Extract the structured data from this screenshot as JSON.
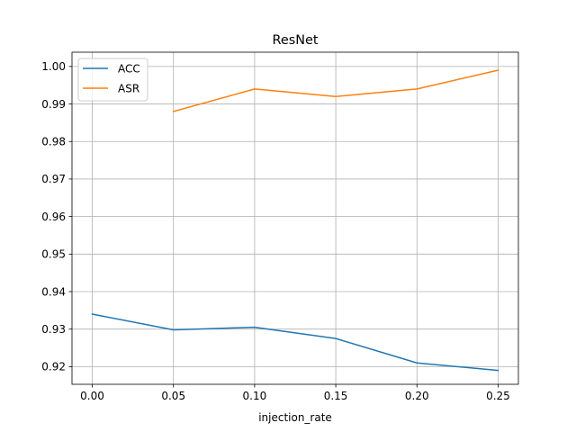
{
  "chart_data": {
    "type": "line",
    "title": "ResNet",
    "xlabel": "injection_rate",
    "ylabel": "",
    "xlim": [
      -0.0125,
      0.2625
    ],
    "ylim": [
      0.9153,
      1.0038
    ],
    "x_ticks": [
      0.0,
      0.05,
      0.1,
      0.15,
      0.2,
      0.25
    ],
    "x_tick_labels": [
      "0.00",
      "0.05",
      "0.10",
      "0.15",
      "0.20",
      "0.25"
    ],
    "y_ticks": [
      0.92,
      0.93,
      0.94,
      0.95,
      0.96,
      0.97,
      0.98,
      0.99,
      1.0
    ],
    "y_tick_labels": [
      "0.92",
      "0.93",
      "0.94",
      "0.95",
      "0.96",
      "0.97",
      "0.98",
      "0.99",
      "1.00"
    ],
    "grid": true,
    "legend_position": "top-left",
    "series": [
      {
        "name": "ACC",
        "color": "#1f77b4",
        "x": [
          0.0,
          0.05,
          0.1,
          0.15,
          0.2,
          0.25
        ],
        "y": [
          0.934,
          0.9298,
          0.9305,
          0.9275,
          0.921,
          0.919
        ]
      },
      {
        "name": "ASR",
        "color": "#ff7f0e",
        "x": [
          0.05,
          0.1,
          0.15,
          0.2,
          0.25
        ],
        "y": [
          0.988,
          0.994,
          0.992,
          0.994,
          0.999
        ]
      }
    ]
  }
}
